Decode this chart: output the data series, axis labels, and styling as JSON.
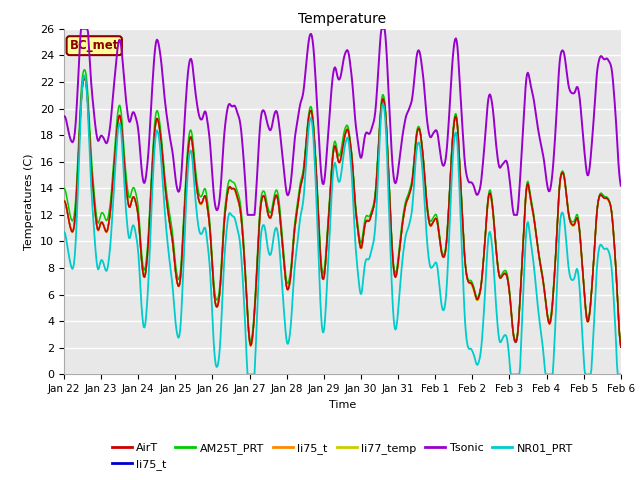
{
  "title": "Temperature",
  "ylabel": "Temperatures (C)",
  "xlabel": "Time",
  "ylim": [
    0,
    26
  ],
  "fig_bg_color": "#ffffff",
  "plot_bg_color": "#e8e8e8",
  "grid_color": "#ffffff",
  "annotation_text": "BC_met",
  "annotation_facecolor": "#ffff99",
  "annotation_edgecolor": "#8b0000",
  "series_colors": {
    "AirT": "#cc0000",
    "li75_blue": "#0000cc",
    "AM25T_PRT": "#00cc00",
    "li75_orange": "#ff8800",
    "li77_temp": "#cccc00",
    "Tsonic": "#9900cc",
    "NR01_PRT": "#00cccc"
  },
  "legend_entries": [
    {
      "label": "AirT",
      "color": "#cc0000"
    },
    {
      "label": "li75_t",
      "color": "#0000cc"
    },
    {
      "label": "AM25T_PRT",
      "color": "#00cc00"
    },
    {
      "label": "li75_t",
      "color": "#ff8800"
    },
    {
      "label": "li77_temp",
      "color": "#cccc00"
    },
    {
      "label": "Tsonic",
      "color": "#9900cc"
    },
    {
      "label": "NR01_PRT",
      "color": "#00cccc"
    }
  ],
  "xtick_labels": [
    "Jan 22",
    "Jan 23",
    "Jan 24",
    "Jan 25",
    "Jan 26",
    "Jan 27",
    "Jan 28",
    "Jan 29",
    "Jan 30",
    "Jan 31",
    "Feb 1",
    "Feb 2",
    "Feb 3",
    "Feb 4",
    "Feb 5",
    "Feb 6"
  ],
  "ytick_vals": [
    0,
    2,
    4,
    6,
    8,
    10,
    12,
    14,
    16,
    18,
    20,
    22,
    24,
    26
  ]
}
